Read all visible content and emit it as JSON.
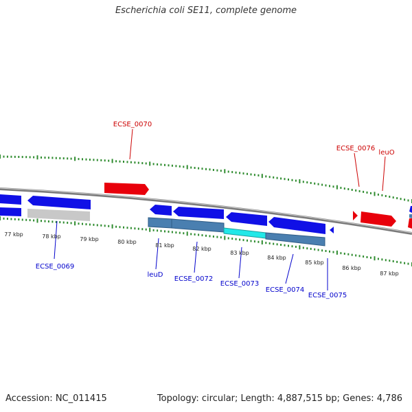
{
  "header": {
    "title": "Escherichia coli SE11, complete genome"
  },
  "footer": {
    "accession": "Accession: NC_011415",
    "summary": "Topology: circular; Length: 4,887,515 bp; Genes: 4,786"
  },
  "colors": {
    "forward_gene": "#e8000b",
    "reverse_gene": "#1010e6",
    "reverse_cds": "#4a7fb0",
    "highlight_cds": "#22e8e8",
    "pseudo_gene": "#c8c8c8",
    "tick": "#2e8b2e",
    "backbone": "#888888",
    "forward_label": "#cc0000",
    "reverse_label": "#0000cc"
  },
  "scale": {
    "unit": "kbp",
    "labels": [
      "77 kbp",
      "78 kbp",
      "79 kbp",
      "80 kbp",
      "81 kbp",
      "82 kbp",
      "83 kbp",
      "84 kbp",
      "85 kbp",
      "86 kbp",
      "87 kbp"
    ]
  },
  "genes": {
    "forward": [
      "ECSE_0070",
      "ECSE_0076",
      "leuO"
    ],
    "reverse": [
      "ECSE_0069",
      "leuD",
      "ECSE_0072",
      "ECSE_0073",
      "ECSE_0074",
      "ECSE_0075"
    ]
  }
}
